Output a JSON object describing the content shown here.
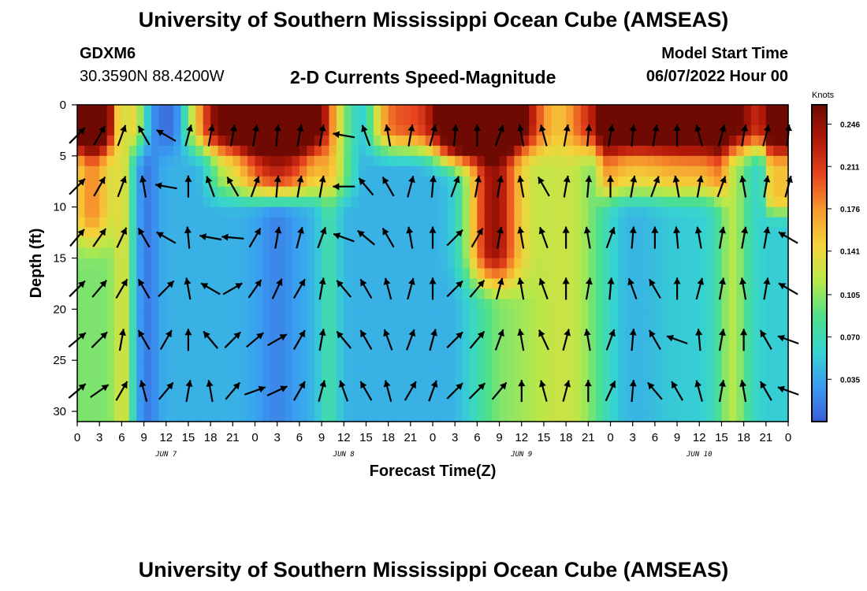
{
  "header": {
    "title": "University of Southern Mississippi Ocean Cube (AMSEAS)",
    "station_id": "GDXM6",
    "station_coords": "30.3590N  88.4200W",
    "plot_title": "2-D Currents Speed-Magnitude",
    "start_label": "Model Start Time",
    "start_value": "06/07/2022 Hour 00"
  },
  "footer": {
    "title": "University of Southern Mississippi Ocean Cube (AMSEAS)"
  },
  "chart_data": {
    "type": "heatmap",
    "xlabel": "Forecast Time(Z)",
    "ylabel": "Depth (ft)",
    "x_range_hours": [
      0,
      96
    ],
    "ylim": [
      0,
      31
    ],
    "y_inverted": true,
    "x_tick_labels": [
      "0",
      "3",
      "6",
      "9",
      "12",
      "15",
      "18",
      "21",
      "0",
      "3",
      "6",
      "9",
      "12",
      "15",
      "18",
      "21",
      "0",
      "3",
      "6",
      "9",
      "12",
      "15",
      "18",
      "21",
      "0",
      "3",
      "6",
      "9",
      "12",
      "15",
      "18",
      "21",
      "0"
    ],
    "y_ticks": [
      0,
      5,
      10,
      15,
      20,
      25,
      30
    ],
    "day_labels": [
      {
        "label": "JUN 7",
        "hour": 12
      },
      {
        "label": "JUN 8",
        "hour": 36
      },
      {
        "label": "JUN 9",
        "hour": 60
      },
      {
        "label": "JUN 10",
        "hour": 84
      }
    ],
    "colorbar": {
      "unit": "Knots",
      "ticks": [
        "0.246",
        "0.211",
        "0.176",
        "0.141",
        "0.105",
        "0.070",
        "0.035"
      ],
      "tick_values": [
        0.246,
        0.211,
        0.176,
        0.141,
        0.105,
        0.07,
        0.035
      ],
      "range": [
        0.0,
        0.262
      ],
      "colors": [
        "#3b5bd6",
        "#3a9cf2",
        "#36d4d0",
        "#4fe08a",
        "#b8e84a",
        "#f4d43a",
        "#f79a2e",
        "#e6451e",
        "#b01808",
        "#6e0a02"
      ]
    },
    "quiver_hours": [
      0,
      3,
      6,
      9,
      12,
      15,
      18,
      21,
      24,
      27,
      30,
      33,
      36,
      39,
      42,
      45,
      48,
      51,
      54,
      57,
      60,
      63,
      66,
      69,
      72,
      75,
      78,
      81,
      84,
      87,
      90,
      93,
      96
    ],
    "quiver_depths": [
      3,
      8,
      13,
      18,
      23,
      28
    ],
    "quiver_directions_deg": [
      [
        45,
        30,
        20,
        330,
        300,
        15,
        10,
        10,
        10,
        5,
        10,
        10,
        280,
        340,
        350,
        10,
        15,
        5,
        0,
        20,
        350,
        345,
        10,
        5,
        10,
        5,
        10,
        0,
        345,
        15,
        10,
        15,
        5
      ],
      [
        45,
        30,
        20,
        350,
        280,
        0,
        340,
        330,
        20,
        5,
        10,
        10,
        270,
        320,
        330,
        15,
        5,
        20,
        10,
        10,
        350,
        330,
        10,
        5,
        0,
        10,
        20,
        350,
        10,
        20,
        350,
        10,
        15
      ],
      [
        40,
        35,
        25,
        330,
        300,
        355,
        280,
        275,
        30,
        10,
        15,
        20,
        290,
        310,
        330,
        350,
        0,
        45,
        30,
        10,
        350,
        340,
        0,
        350,
        20,
        5,
        0,
        355,
        350,
        10,
        10,
        10,
        300
      ],
      [
        45,
        40,
        30,
        330,
        45,
        350,
        300,
        60,
        35,
        25,
        30,
        10,
        320,
        330,
        345,
        15,
        0,
        45,
        40,
        15,
        350,
        340,
        0,
        10,
        5,
        340,
        330,
        0,
        15,
        10,
        350,
        10,
        300
      ],
      [
        50,
        45,
        10,
        330,
        30,
        0,
        320,
        45,
        50,
        60,
        30,
        10,
        320,
        330,
        340,
        20,
        15,
        45,
        40,
        20,
        350,
        335,
        15,
        350,
        20,
        5,
        330,
        290,
        355,
        10,
        0,
        330,
        290
      ],
      [
        50,
        55,
        30,
        345,
        40,
        10,
        350,
        40,
        70,
        65,
        30,
        15,
        340,
        330,
        345,
        30,
        20,
        45,
        45,
        40,
        0,
        345,
        15,
        0,
        25,
        5,
        320,
        330,
        345,
        10,
        350,
        330,
        290
      ]
    ]
  }
}
